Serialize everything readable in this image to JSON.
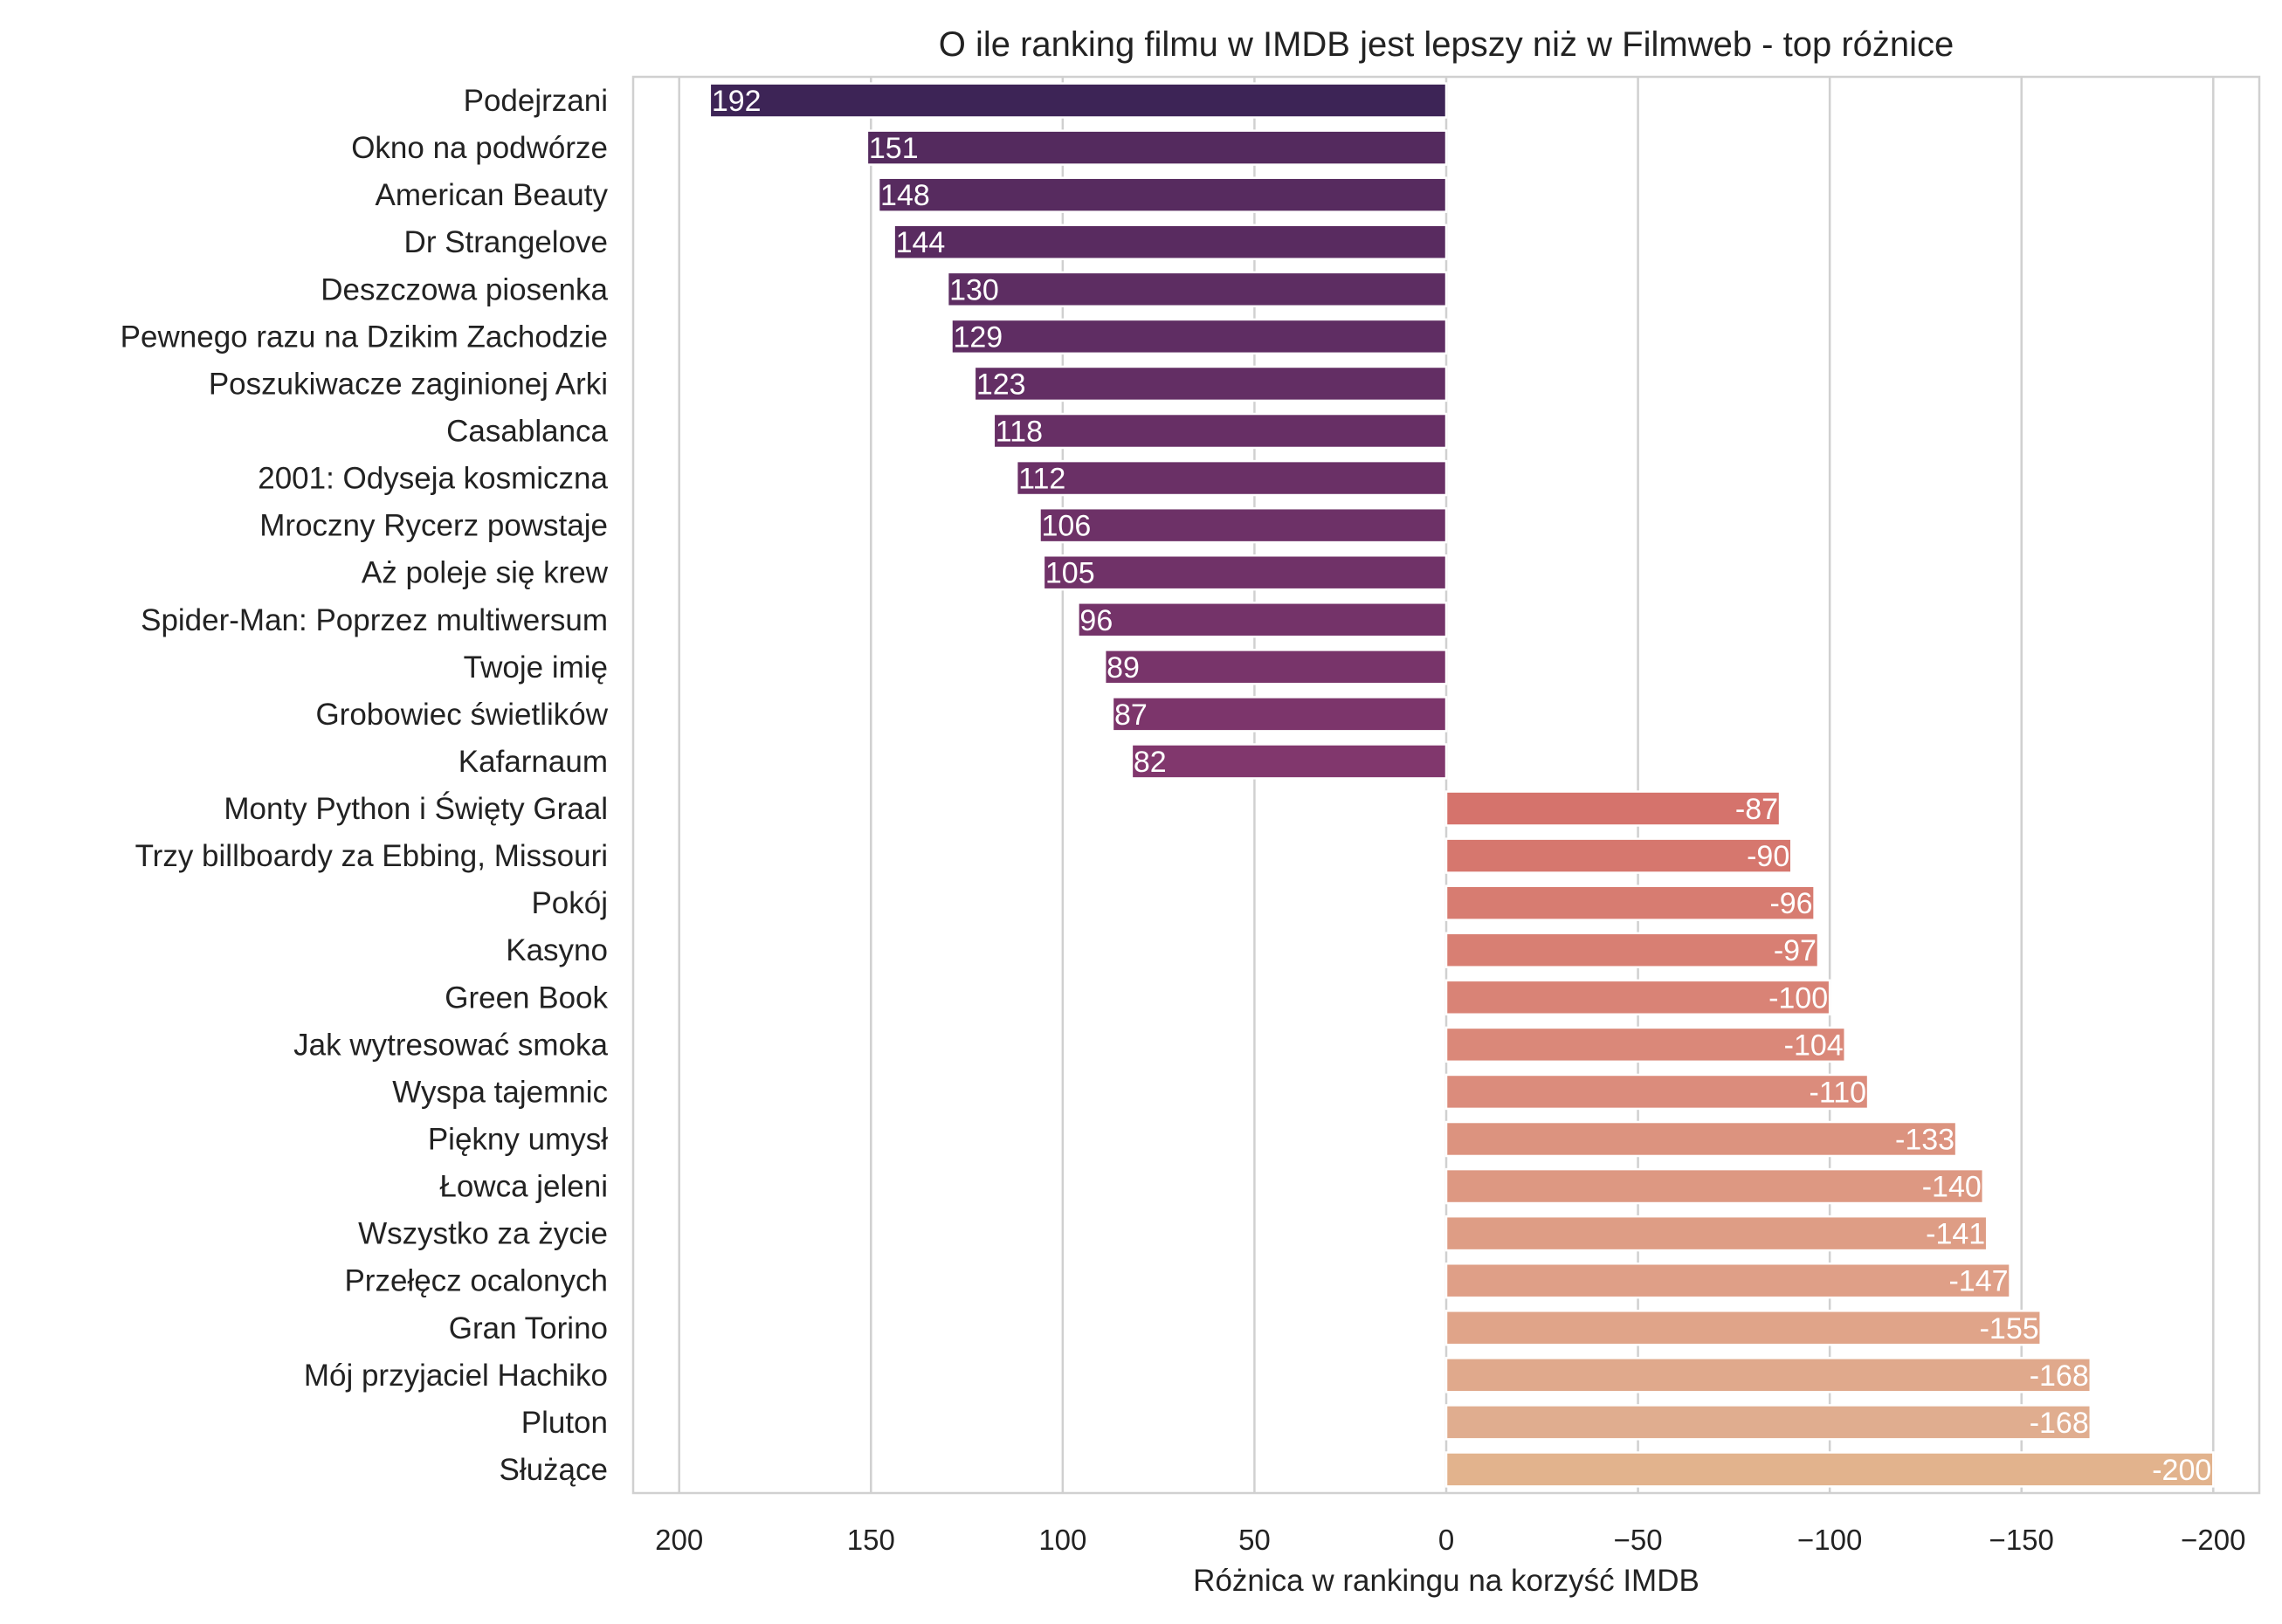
{
  "chart_data": {
    "type": "bar",
    "orientation": "horizontal",
    "title": "O ile ranking filmu w IMDB jest lepszy niż w Filmweb - top różnice",
    "xlabel": "Różnica w rankingu na korzyść IMDB",
    "ylabel": "",
    "xlim": [
      212,
      -212
    ],
    "x_ticks": [
      200,
      150,
      100,
      50,
      0,
      -50,
      -100,
      -150,
      -200
    ],
    "x_tick_labels": [
      "200",
      "150",
      "100",
      "50",
      "0",
      "−50",
      "−100",
      "−150",
      "−200"
    ],
    "grid": "vertical",
    "categories": [
      "Podejrzani",
      "Okno na podwórze",
      "American Beauty",
      "Dr Strangelove",
      "Deszczowa piosenka",
      "Pewnego razu na Dzikim Zachodzie",
      "Poszukiwacze zaginionej Arki",
      "Casablanca",
      "2001: Odyseja kosmiczna",
      "Mroczny Rycerz powstaje",
      "Aż poleje się krew",
      "Spider-Man: Poprzez multiwersum",
      "Twoje imię",
      "Grobowiec świetlików",
      "Kafarnaum",
      "Monty Python i Święty Graal",
      "Trzy billboardy za Ebbing, Missouri",
      "Pokój",
      "Kasyno",
      "Green Book",
      "Jak wytresować smoka",
      "Wyspa tajemnic",
      "Piękny umysł",
      "Łowca jeleni",
      "Wszystko za życie",
      "Przełęcz ocalonych",
      "Gran Torino",
      "Mój przyjaciel Hachiko",
      "Pluton",
      "Służące"
    ],
    "values": [
      192,
      151,
      148,
      144,
      130,
      129,
      123,
      118,
      112,
      106,
      105,
      96,
      89,
      87,
      82,
      -87,
      -90,
      -96,
      -97,
      -100,
      -104,
      -110,
      -133,
      -140,
      -141,
      -147,
      -155,
      -168,
      -168,
      -200
    ],
    "colors": [
      "#3d2456",
      "#542a5e",
      "#572b5f",
      "#592b60",
      "#5d2d62",
      "#5f2d63",
      "#632e64",
      "#672f65",
      "#6a3066",
      "#6d3167",
      "#703268",
      "#743369",
      "#78346a",
      "#7c356b",
      "#81376d",
      "#d5736c",
      "#d6776e",
      "#d77c71",
      "#d87f73",
      "#d98376",
      "#da8879",
      "#db8c7c",
      "#dc937f",
      "#dd9882",
      "#de9d85",
      "#df9f87",
      "#e0a489",
      "#e0a98c",
      "#e0ad8f",
      "#e2b38d"
    ]
  }
}
